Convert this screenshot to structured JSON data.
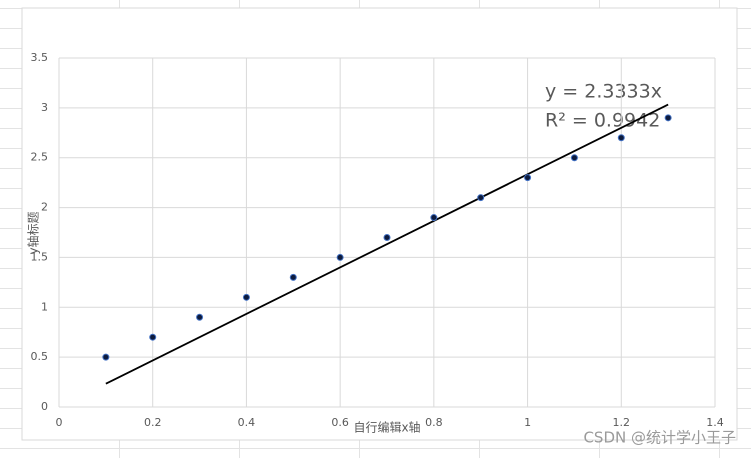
{
  "chart_data": {
    "type": "scatter",
    "x_label": "自行编辑x轴",
    "y_label": "y轴标题",
    "x": [
      0.1,
      0.2,
      0.3,
      0.4,
      0.5,
      0.6,
      0.7,
      0.8,
      0.9,
      1.0,
      1.1,
      1.2,
      1.3
    ],
    "values": [
      0.5,
      0.7,
      0.9,
      1.1,
      1.3,
      1.5,
      1.7,
      1.9,
      2.1,
      2.3,
      2.5,
      2.7,
      2.9
    ],
    "color": "#0d1b3e",
    "edge_color": "#4472c4",
    "xlim": [
      0,
      1.4
    ],
    "xticks": [
      0,
      0.2,
      0.4,
      0.6,
      0.8,
      1,
      1.2,
      1.4
    ],
    "ylim": [
      0,
      3.5
    ],
    "yticks": [
      0,
      0.5,
      1,
      1.5,
      2,
      2.5,
      3,
      3.5
    ],
    "grid": true,
    "trendline": {
      "equation": "y = 2.3333x",
      "r_squared_label": "R² = 0.9942",
      "slope": 2.3333,
      "x_range": [
        0.1,
        1.3
      ],
      "color": "#000000"
    }
  },
  "watermark": "CSDN @统计学小王子"
}
